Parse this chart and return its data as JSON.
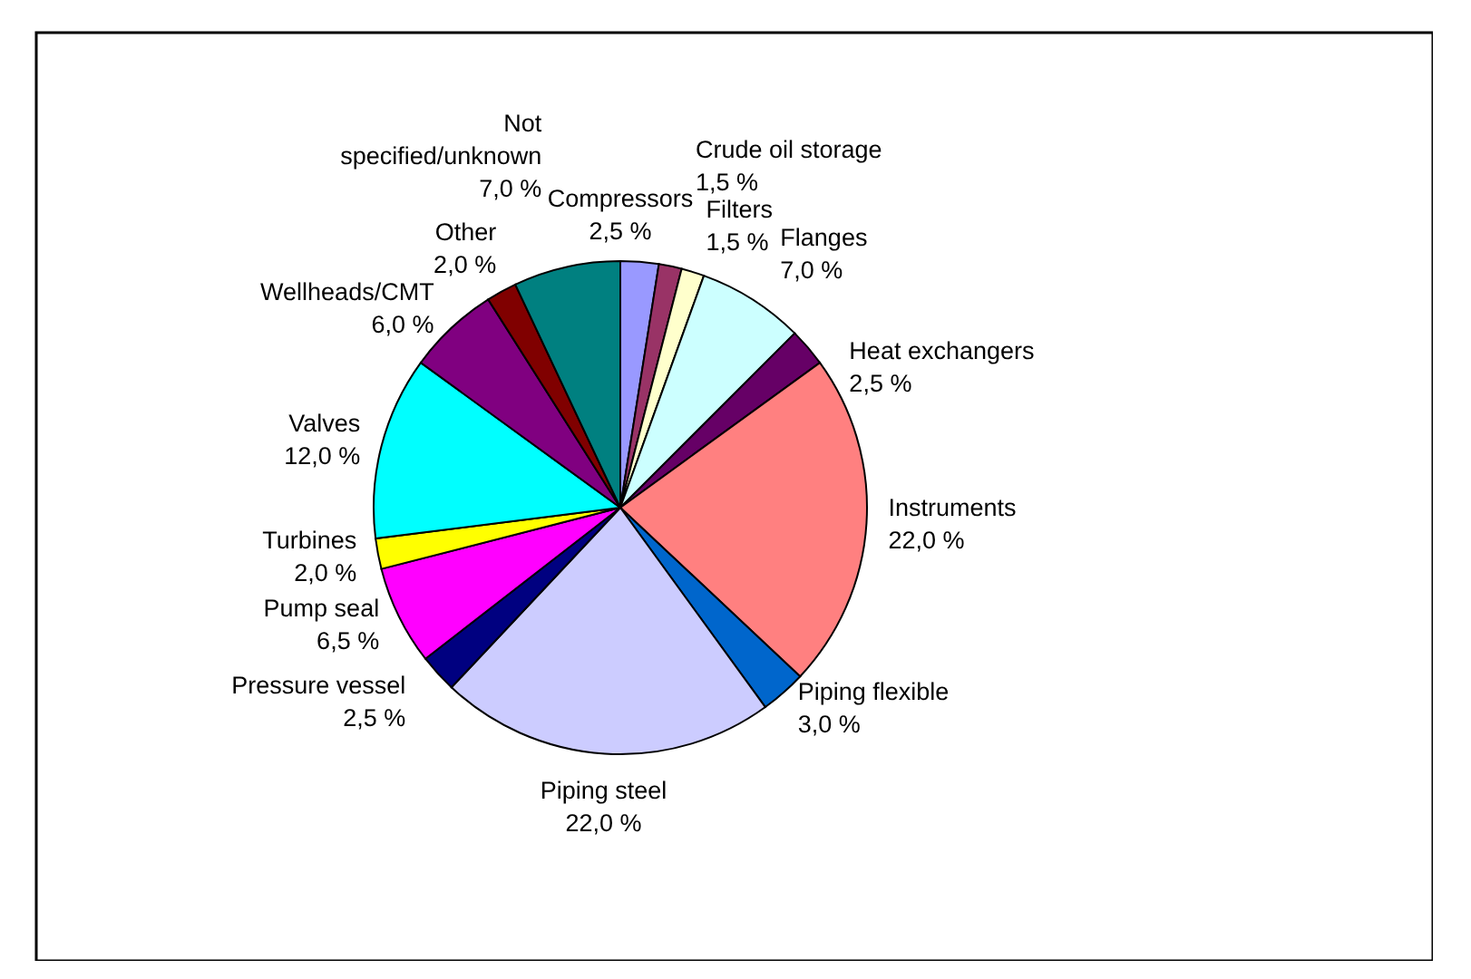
{
  "chart_data": {
    "type": "pie",
    "categories": [
      "Compressors",
      "Crude oil storage",
      "Filters",
      "Flanges",
      "Heat exchangers",
      "Instruments",
      "Piping flexible",
      "Piping steel",
      "Pressure vessel",
      "Pump seal",
      "Turbines",
      "Valves",
      "Wellheads/CMT",
      "Other",
      "Not specified/unknown"
    ],
    "values": [
      2.5,
      1.5,
      1.5,
      7.0,
      2.5,
      22.0,
      3.0,
      22.0,
      2.5,
      6.5,
      2.0,
      12.0,
      6.0,
      2.0,
      7.0
    ],
    "value_labels": [
      "2,5 %",
      "1,5 %",
      "1,5 %",
      "7,0 %",
      "2,5 %",
      "22,0 %",
      "3,0 %",
      "22,0 %",
      "2,5 %",
      "6,5 %",
      "2,0 %",
      "12,0 %",
      "6,0 %",
      "2,0 %",
      "7,0 %"
    ],
    "colors": [
      "#9999ff",
      "#993366",
      "#ffffcc",
      "#ccffff",
      "#660066",
      "#ff8080",
      "#0066cc",
      "#ccccff",
      "#000080",
      "#ff00ff",
      "#ffff00",
      "#00ffff",
      "#800080",
      "#800000",
      "#008080"
    ],
    "legend": false
  }
}
